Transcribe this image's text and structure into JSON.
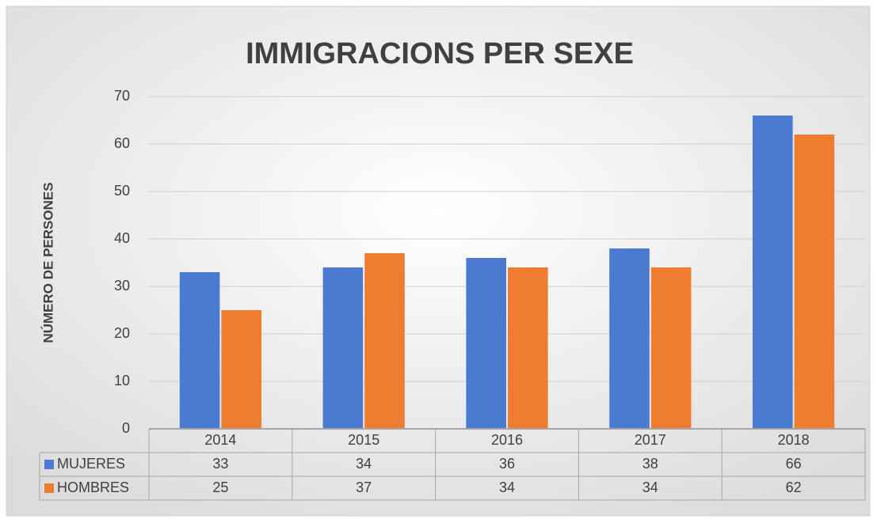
{
  "chart_data": {
    "type": "bar",
    "title": "IMMIGRACIONS PER SEXE",
    "y_axis_label": "NÚMERO DE PERSONES",
    "categories": [
      "2014",
      "2015",
      "2016",
      "2017",
      "2018"
    ],
    "series": [
      {
        "name": "MUJERES",
        "color": "#4a7bd0",
        "values": [
          33,
          34,
          36,
          38,
          66
        ]
      },
      {
        "name": "HOMBRES",
        "color": "#ee7d32",
        "values": [
          25,
          37,
          34,
          34,
          62
        ]
      }
    ],
    "ylim": [
      0,
      70
    ],
    "yticks": [
      0,
      10,
      20,
      30,
      40,
      50,
      60,
      70
    ],
    "grid": true,
    "data_table": true
  }
}
